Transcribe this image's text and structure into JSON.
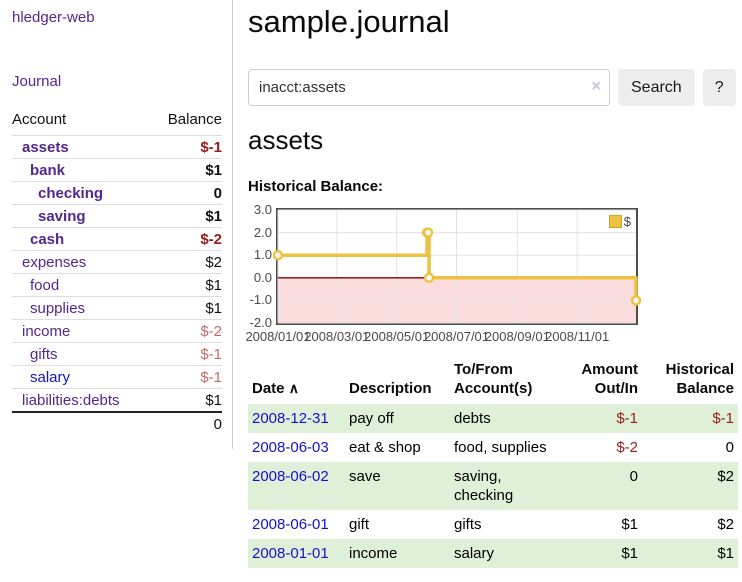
{
  "app": {
    "brand": "hledger-web",
    "journal_link": "Journal"
  },
  "sidebar": {
    "header": {
      "account": "Account",
      "balance": "Balance"
    },
    "rows": [
      {
        "name": "assets",
        "balance": "$-1"
      },
      {
        "name": "bank",
        "balance": "$1"
      },
      {
        "name": "checking",
        "balance": "0"
      },
      {
        "name": "saving",
        "balance": "$1"
      },
      {
        "name": "cash",
        "balance": "$-2"
      },
      {
        "name": "expenses",
        "balance": "$2"
      },
      {
        "name": "food",
        "balance": "$1"
      },
      {
        "name": "supplies",
        "balance": "$1"
      },
      {
        "name": "income",
        "balance": "$-2"
      },
      {
        "name": "gifts",
        "balance": "$-1"
      },
      {
        "name": "salary",
        "balance": "$-1"
      },
      {
        "name": "liabilities:debts",
        "balance": "$1"
      }
    ],
    "total": "0"
  },
  "header": {
    "title": "sample.journal"
  },
  "search": {
    "value": "inacct:assets",
    "clear_icon": "×",
    "search_button": "Search",
    "help_button": "?"
  },
  "account_page": {
    "heading": "assets",
    "chart_label": "Historical Balance:"
  },
  "chart_data": {
    "type": "line",
    "step": true,
    "title": "Historical Balance",
    "x_range": [
      "2008-01-01",
      "2008-12-31"
    ],
    "y_range": [
      -2,
      3
    ],
    "series": [
      {
        "name": "$",
        "color": "#edc240",
        "points": [
          [
            "2008-01-01",
            1
          ],
          [
            "2008-06-01",
            2
          ],
          [
            "2008-06-02",
            2
          ],
          [
            "2008-06-03",
            0
          ],
          [
            "2008-12-31",
            -1
          ]
        ]
      }
    ],
    "x_ticks": [
      {
        "v": "2008-01-01",
        "label": "2008/01/01"
      },
      {
        "v": "2008-03-01",
        "label": "2008/03/01"
      },
      {
        "v": "2008-05-01",
        "label": "2008/05/01"
      },
      {
        "v": "2008-07-01",
        "label": "2008/07/01"
      },
      {
        "v": "2008-09-01",
        "label": "2008/09/01"
      },
      {
        "v": "2008-11-01",
        "label": "2008/11/01"
      }
    ],
    "y_ticks": [
      {
        "v": 3,
        "label": "3.0"
      },
      {
        "v": 2,
        "label": "2.0"
      },
      {
        "v": 1,
        "label": "1.0"
      },
      {
        "v": 0,
        "label": "0.0"
      },
      {
        "v": -1,
        "label": "-1.0"
      },
      {
        "v": -2,
        "label": "-2.0"
      }
    ],
    "legend": {
      "label": "$",
      "position": "top-right"
    },
    "grid": true,
    "negative_region_fill": "#fbdcdc",
    "zero_line_color": "#8b0000",
    "grid_color": "#e3e3e3"
  },
  "register": {
    "header": {
      "date": "Date",
      "sort_caret": "∧",
      "description": "Description",
      "accounts": "To/From Account(s)",
      "amount": "Amount Out/In",
      "balance": "Historical Balance"
    },
    "rows": [
      {
        "date": "2008-12-31",
        "description": "pay off",
        "accounts": "debts",
        "amount": "$-1",
        "balance": "$-1"
      },
      {
        "date": "2008-06-03",
        "description": "eat & shop",
        "accounts": "food, supplies",
        "amount": "$-2",
        "balance": "0"
      },
      {
        "date": "2008-06-02",
        "description": "save",
        "accounts": "saving, checking",
        "amount": "0",
        "balance": "$2"
      },
      {
        "date": "2008-06-01",
        "description": "gift",
        "accounts": "gifts",
        "amount": "$1",
        "balance": "$2"
      },
      {
        "date": "2008-01-01",
        "description": "income",
        "accounts": "salary",
        "amount": "$1",
        "balance": "$1"
      }
    ]
  },
  "colors": {
    "link_purple": "#54278e",
    "link_blue": "#1512cb",
    "negative_strong": "#9c1b1b",
    "negative_soft": "#c46a6a",
    "row_stripe_green": "#dff0d8",
    "chart_line_gold": "#edc240",
    "chart_negative_fill": "#fbdcdc",
    "chart_zero_line": "#8b0000"
  }
}
